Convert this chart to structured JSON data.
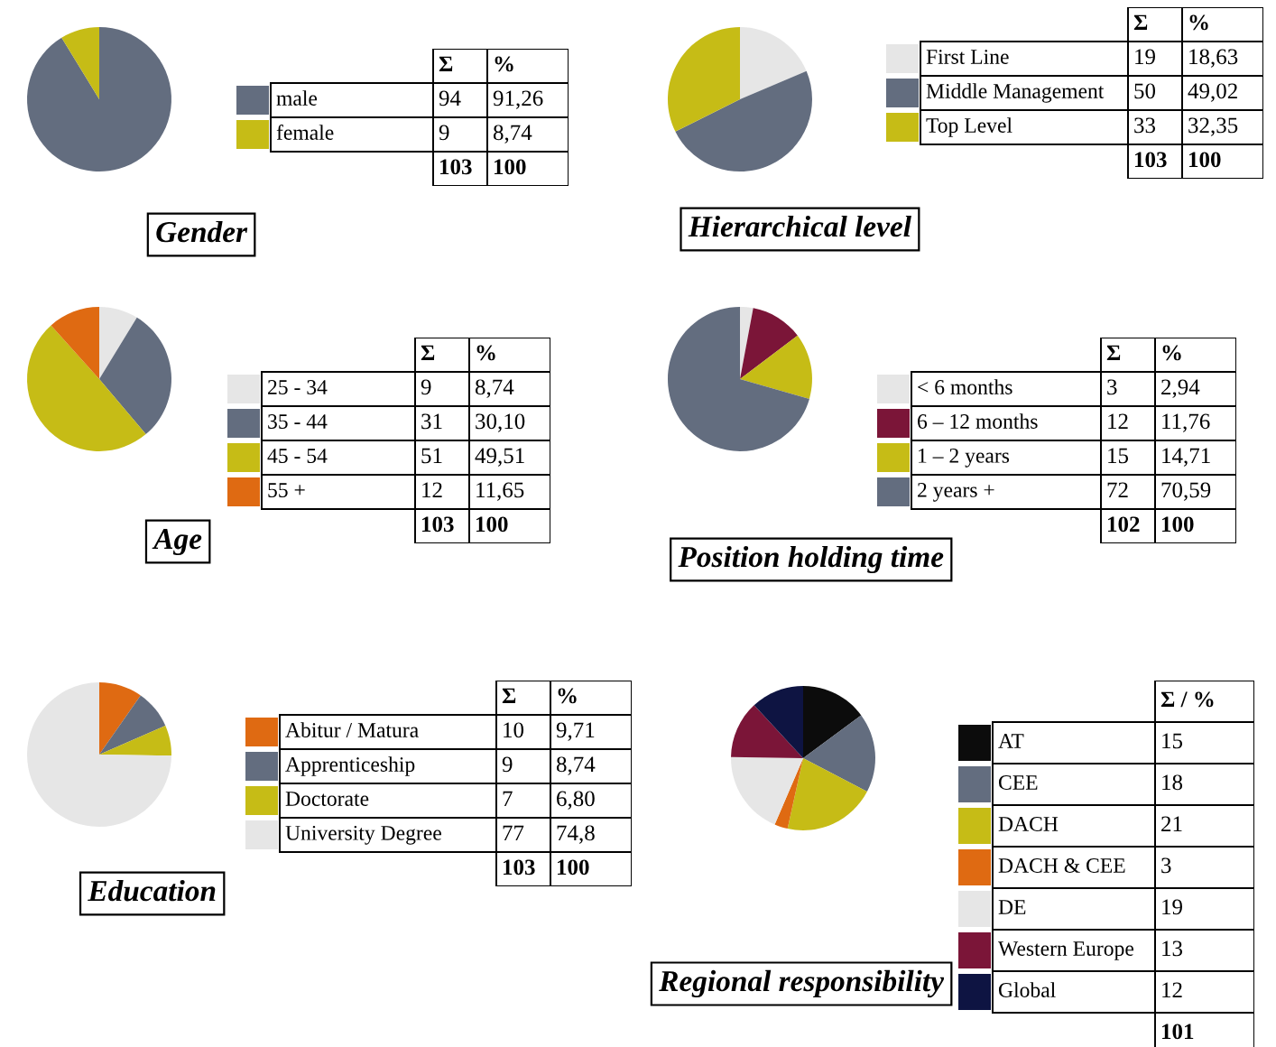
{
  "chart_data": [
    {
      "type": "pie",
      "title": "Gender",
      "legend": "right",
      "categories": [
        "male",
        "female"
      ],
      "colors": [
        "#636d7f",
        "#c6bc16"
      ],
      "values": [
        94,
        9
      ],
      "value_labels": [
        "94",
        "9"
      ],
      "totals": [
        "103"
      ],
      "annotations": [
        "Σ",
        "%",
        "91,26",
        "8,74",
        "100"
      ]
    },
    {
      "type": "pie",
      "title": "Hierarchical level",
      "legend": "right",
      "categories": [
        "First Line",
        "Middle Management",
        "Top Level"
      ],
      "colors": [
        "#e6e6e6",
        "#636d7f",
        "#c6bc16"
      ],
      "values": [
        19,
        50,
        33
      ],
      "value_labels": [
        "19",
        "50",
        "33"
      ],
      "totals": [
        "103"
      ],
      "annotations": [
        "Σ",
        "%",
        "18,63",
        "49,02",
        "32,35",
        "100"
      ]
    },
    {
      "type": "pie",
      "title": "Age",
      "legend": "right",
      "categories": [
        "25 - 34",
        "35 - 44",
        "45 - 54",
        "55 +"
      ],
      "colors": [
        "#e6e6e6",
        "#636d7f",
        "#c6bc16",
        "#df6a12"
      ],
      "values": [
        9,
        31,
        51,
        12
      ],
      "value_labels": [
        "9",
        "31",
        "51",
        "12"
      ],
      "totals": [
        "103"
      ],
      "annotations": [
        "Σ",
        "%",
        "8,74",
        "30,10",
        "49,51",
        "11,65",
        "100"
      ]
    },
    {
      "type": "pie",
      "title": "Position holding time",
      "legend": "right",
      "categories": [
        "< 6 months",
        "6 – 12 months",
        "1 – 2 years",
        "2 years +"
      ],
      "colors": [
        "#e6e6e6",
        "#7b1538",
        "#c6bc16",
        "#636d7f"
      ],
      "values": [
        3,
        12,
        15,
        72
      ],
      "value_labels": [
        "3",
        "12",
        "15",
        "72"
      ],
      "totals": [
        "102"
      ],
      "annotations": [
        "Σ",
        "%",
        "2,94",
        "11,76",
        "14,71",
        "70,59",
        "100"
      ]
    },
    {
      "type": "pie",
      "title": "Education",
      "legend": "right",
      "categories": [
        "Abitur / Matura",
        "Apprenticeship",
        "Doctorate",
        "University Degree"
      ],
      "colors": [
        "#df6a12",
        "#636d7f",
        "#c6bc16",
        "#e6e6e6"
      ],
      "values": [
        10,
        9,
        7,
        77
      ],
      "value_labels": [
        "10",
        "9",
        "7",
        "77"
      ],
      "totals": [
        "103"
      ],
      "annotations": [
        "Σ",
        "%",
        "9,71",
        "8,74",
        "6,80",
        "74,8",
        "100"
      ]
    },
    {
      "type": "pie",
      "title": "Regional responsibility",
      "legend": "right",
      "categories": [
        "AT",
        "CEE",
        "DACH",
        "DACH & CEE",
        "DE",
        "Western Europe",
        "Global"
      ],
      "colors": [
        "#0c0c0c",
        "#636d7f",
        "#c6bc16",
        "#df6a12",
        "#e6e6e6",
        "#7b1538",
        "#0e1442"
      ],
      "values": [
        15,
        18,
        21,
        3,
        19,
        13,
        12
      ],
      "value_labels": [
        "15",
        "18",
        "21",
        "3",
        "19",
        "13",
        "12"
      ],
      "totals": [
        "101"
      ],
      "annotations": [
        "Σ / %"
      ]
    }
  ]
}
